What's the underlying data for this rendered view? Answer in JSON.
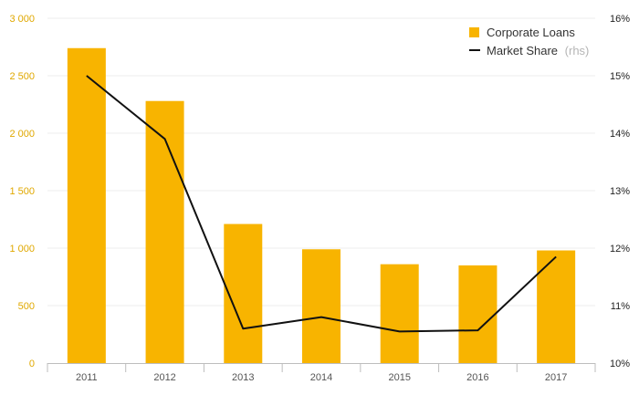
{
  "chart_data": {
    "type": "bar+line",
    "categories": [
      "2011",
      "2012",
      "2013",
      "2014",
      "2015",
      "2016",
      "2017"
    ],
    "series": [
      {
        "name": "Corporate Loans",
        "type": "bar",
        "axis": "left",
        "color": "#F8B400",
        "values": [
          2740,
          2280,
          1210,
          990,
          860,
          850,
          980
        ]
      },
      {
        "name": "Market Share",
        "type": "line",
        "axis": "right",
        "color": "#111111",
        "values": [
          15.0,
          13.9,
          10.6,
          10.8,
          10.55,
          10.57,
          11.85
        ]
      }
    ],
    "y_left": {
      "lim": [
        0,
        3000
      ],
      "ticks": [
        0,
        500,
        1000,
        1500,
        2000,
        2500,
        3000
      ],
      "tick_labels": [
        "0",
        "500",
        "1 000",
        "1 500",
        "2 000",
        "2 500",
        "3 000"
      ]
    },
    "y_right": {
      "lim": [
        10,
        16
      ],
      "ticks": [
        10,
        11,
        12,
        13,
        14,
        15,
        16
      ],
      "tick_labels": [
        "10%",
        "11%",
        "12%",
        "13%",
        "14%",
        "15%",
        "16%"
      ]
    },
    "legend": {
      "placement": "top-right",
      "items": [
        {
          "label": "Corporate Loans",
          "suffix": ""
        },
        {
          "label": "Market Share",
          "suffix": "(rhs)"
        }
      ]
    },
    "grid": true,
    "gridline_color": "#ececec",
    "baseline_color": "#bdbdbd",
    "left_tick_color": "#E0A800"
  }
}
